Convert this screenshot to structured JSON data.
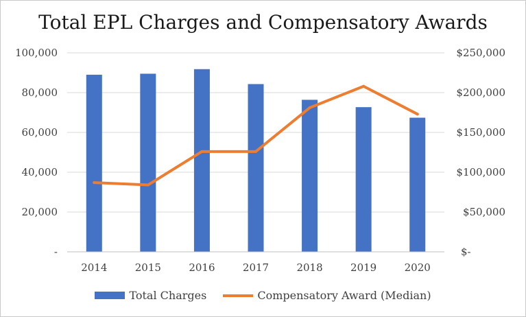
{
  "chart_data": {
    "type": "bar+line",
    "title": "Total EPL Charges and Compensatory Awards",
    "categories": [
      "2014",
      "2015",
      "2016",
      "2017",
      "2018",
      "2019",
      "2020"
    ],
    "series": [
      {
        "name": "Total Charges",
        "type": "bar",
        "axis": "left",
        "color": "#4472c4",
        "values": [
          89000,
          89500,
          91800,
          84300,
          76400,
          72700,
          67400
        ]
      },
      {
        "name": "Compensatory Award (Median)",
        "type": "line",
        "axis": "right",
        "color": "#ed7d31",
        "values": [
          87000,
          84000,
          126000,
          126000,
          181000,
          208000,
          173000
        ]
      }
    ],
    "y_left": {
      "range": [
        0,
        100000
      ],
      "ticks": [
        0,
        20000,
        40000,
        60000,
        80000,
        100000
      ],
      "tick_labels": [
        "-",
        "20,000",
        "40,000",
        "60,000",
        "80,000",
        "100,000"
      ]
    },
    "y_right": {
      "range": [
        0,
        250000
      ],
      "ticks": [
        0,
        50000,
        100000,
        150000,
        200000,
        250000
      ],
      "tick_labels": [
        "$-",
        "$50,000",
        "$100,000",
        "$150,000",
        "$200,000",
        "$250,000"
      ]
    },
    "grid": true,
    "legend": "bottom"
  }
}
